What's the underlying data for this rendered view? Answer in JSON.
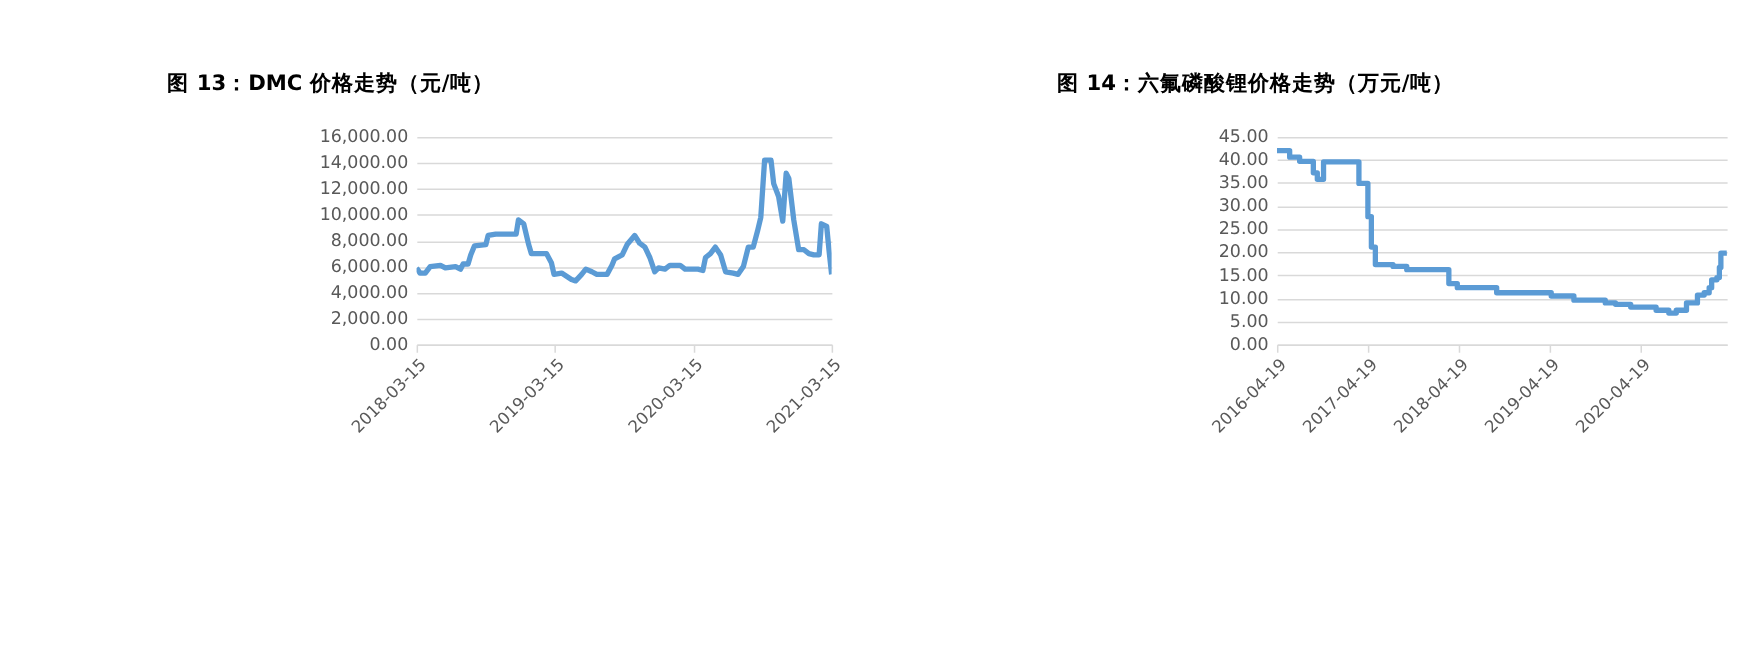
{
  "chart_data": [
    {
      "type": "line",
      "title": "图 13：DMC 价格走势（元/吨）",
      "x": [
        "2018-03-15",
        "2018-03-24",
        "2018-04-07",
        "2018-04-20",
        "2018-05-17",
        "2018-05-30",
        "2018-06-26",
        "2018-07-09",
        "2018-07-16",
        "2018-07-29",
        "2018-08-05",
        "2018-08-15",
        "2018-09-14",
        "2018-09-20",
        "2018-10-10",
        "2018-12-03",
        "2018-12-09",
        "2018-12-23",
        "2019-01-05",
        "2019-01-12",
        "2019-02-21",
        "2019-03-06",
        "2019-03-13",
        "2019-04-02",
        "2019-04-28",
        "2019-05-09",
        "2019-05-25",
        "2019-06-05",
        "2019-06-21",
        "2019-07-04",
        "2019-07-31",
        "2019-08-13",
        "2019-08-20",
        "2019-09-09",
        "2019-09-22",
        "2019-10-12",
        "2019-10-25",
        "2019-11-08",
        "2019-11-21",
        "2019-12-04",
        "2019-12-14",
        "2019-12-31",
        "2020-01-13",
        "2020-02-09",
        "2020-02-22",
        "2020-03-27",
        "2020-04-09",
        "2020-04-16",
        "2020-04-29",
        "2020-05-12",
        "2020-05-26",
        "2020-06-08",
        "2020-06-28",
        "2020-07-11",
        "2020-07-25",
        "2020-08-07",
        "2020-08-20",
        "2020-08-31",
        "2020-09-09",
        "2020-09-19",
        "2020-10-06",
        "2020-10-13",
        "2020-10-26",
        "2020-11-06",
        "2020-11-15",
        "2020-11-22",
        "2020-12-05",
        "2020-12-18",
        "2021-01-01",
        "2021-01-14",
        "2021-01-27",
        "2021-02-10",
        "2021-02-16",
        "2021-03-02",
        "2021-03-08",
        "2021-03-15"
      ],
      "series": [
        {
          "color": "#5b9bd5",
          "values": [
            5900,
            5500,
            5500,
            6000,
            6100,
            5900,
            6000,
            5800,
            6200,
            6200,
            6900,
            7600,
            7700,
            8400,
            8500,
            8500,
            9600,
            9300,
            7700,
            7000,
            7000,
            6300,
            5400,
            5500,
            5000,
            4900,
            5400,
            5800,
            5600,
            5400,
            5400,
            6100,
            6600,
            6900,
            7700,
            8400,
            7800,
            7500,
            6700,
            5600,
            5900,
            5800,
            6100,
            6100,
            5800,
            5800,
            5700,
            6700,
            7000,
            7500,
            6900,
            5600,
            5500,
            5400,
            6000,
            7500,
            7500,
            8700,
            9800,
            14200,
            14200,
            12400,
            11400,
            9500,
            13200,
            12800,
            9600,
            7300,
            7300,
            7000,
            6900,
            6900,
            9300,
            9100,
            7300,
            5400
          ]
        }
      ],
      "xlim": [
        "2018-03-15",
        "2021-03-15"
      ],
      "xticks": [
        "2018-03-15",
        "2019-03-15",
        "2020-03-15",
        "2021-03-15"
      ],
      "ylim": [
        0,
        16000
      ],
      "yticks": [
        {
          "value": 0,
          "label": "0.00"
        },
        {
          "value": 2000,
          "label": "2,000.00"
        },
        {
          "value": 4000,
          "label": "4,000.00"
        },
        {
          "value": 6000,
          "label": "6,000.00"
        },
        {
          "value": 8000,
          "label": "8,000.00"
        },
        {
          "value": 10000,
          "label": "10,000.00"
        },
        {
          "value": 12000,
          "label": "12,000.00"
        },
        {
          "value": 14000,
          "label": "14,000.00"
        },
        {
          "value": 16000,
          "label": "16,000.00"
        }
      ],
      "grid": "y",
      "legend": false
    },
    {
      "type": "step",
      "title": "图 14：六氟磷酸锂价格走势（万元/吨）",
      "x": [
        "2016-04-19",
        "2016-06-09",
        "2016-07-19",
        "2016-09-12",
        "2016-09-28",
        "2016-10-23",
        "2017-03-14",
        "2017-04-19",
        "2017-05-03",
        "2017-05-19",
        "2017-07-29",
        "2017-09-22",
        "2018-03-10",
        "2018-04-13",
        "2018-09-18",
        "2019-04-25",
        "2019-07-25",
        "2019-11-28",
        "2020-01-08",
        "2020-03-09",
        "2020-06-19",
        "2020-08-09",
        "2020-09-08",
        "2020-10-19",
        "2020-12-02",
        "2020-12-29",
        "2021-01-18",
        "2021-01-28",
        "2021-02-18",
        "2021-02-28",
        "2021-03-06",
        "2021-03-30"
      ],
      "series": [
        {
          "color": "#5b9bd5",
          "values": [
            42.0,
            40.6,
            39.7,
            37.2,
            35.8,
            39.6,
            34.9,
            27.7,
            21.1,
            17.3,
            16.9,
            16.2,
            13.2,
            12.3,
            11.2,
            10.5,
            9.6,
            9.0,
            8.7,
            8.1,
            7.4,
            6.8,
            7.4,
            9.0,
            10.7,
            11.2,
            12.3,
            14.0,
            14.5,
            16.7,
            19.8,
            20.0
          ]
        }
      ],
      "xlim": [
        "2016-04-19",
        "2021-03-30"
      ],
      "xticks": [
        "2016-04-19",
        "2017-04-19",
        "2018-04-19",
        "2019-04-19",
        "2020-04-19"
      ],
      "ylim": [
        0,
        45
      ],
      "yticks": [
        {
          "value": 0,
          "label": "0.00"
        },
        {
          "value": 5,
          "label": "5.00"
        },
        {
          "value": 10,
          "label": "10.00"
        },
        {
          "value": 15,
          "label": "15.00"
        },
        {
          "value": 20,
          "label": "20.00"
        },
        {
          "value": 25,
          "label": "25.00"
        },
        {
          "value": 30,
          "label": "30.00"
        },
        {
          "value": 35,
          "label": "35.00"
        },
        {
          "value": 40,
          "label": "40.00"
        },
        {
          "value": 45,
          "label": "45.00"
        }
      ],
      "grid": "y",
      "legend": false
    }
  ]
}
